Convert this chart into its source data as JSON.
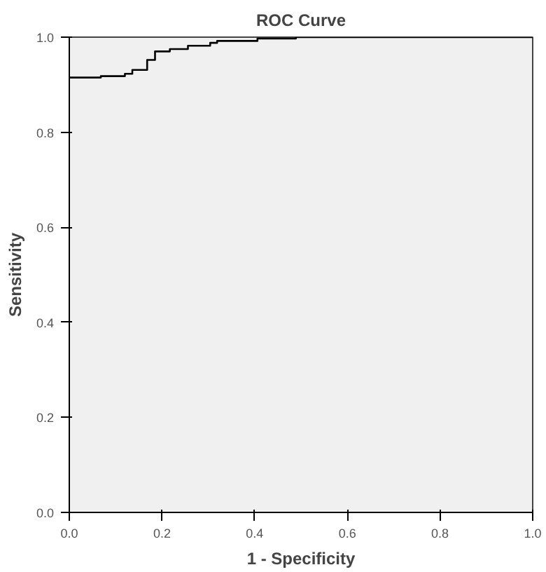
{
  "chart_data": {
    "type": "step",
    "title": "ROC Curve",
    "xlabel": "1 - Specificity",
    "ylabel": "Sensitivity",
    "x": [
      0,
      0.068,
      0.12,
      0.136,
      0.168,
      0.185,
      0.217,
      0.256,
      0.304,
      0.319,
      0.406,
      0.489,
      1.0
    ],
    "series": [
      {
        "color": "#000000",
        "values": [
          0.915,
          0.918,
          0.923,
          0.931,
          0.952,
          0.97,
          0.975,
          0.982,
          0.988,
          0.992,
          0.997,
          1.0,
          1.0
        ]
      }
    ],
    "xlim": [
      0,
      1
    ],
    "ylim": [
      0,
      1
    ],
    "xticks": [
      {
        "value": 0,
        "label": "0.0"
      },
      {
        "value": 0.2,
        "label": "0.2"
      },
      {
        "value": 0.4,
        "label": "0.4"
      },
      {
        "value": 0.6,
        "label": "0.6"
      },
      {
        "value": 0.8,
        "label": "0.8"
      },
      {
        "value": 1,
        "label": "1.0"
      }
    ],
    "yticks": [
      {
        "value": 0,
        "label": "0.0"
      },
      {
        "value": 0.2,
        "label": "0.2"
      },
      {
        "value": 0.4,
        "label": "0.4"
      },
      {
        "value": 0.6,
        "label": "0.6"
      },
      {
        "value": 0.8,
        "label": "0.8"
      },
      {
        "value": 1,
        "label": "1.0"
      }
    ],
    "line_style": "solid"
  }
}
